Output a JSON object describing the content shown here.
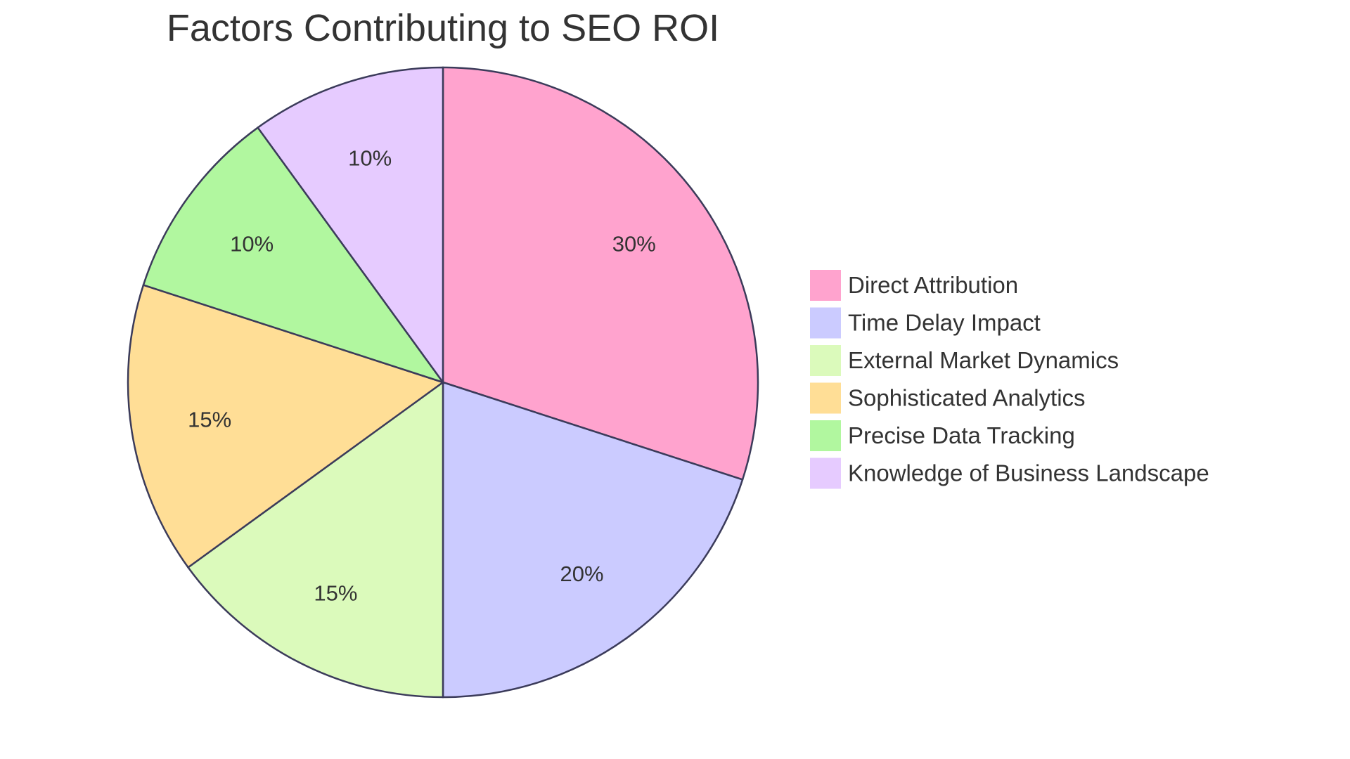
{
  "chart_data": {
    "type": "pie",
    "title": "Factors Contributing to SEO ROI",
    "slices": [
      {
        "label": "Direct Attribution",
        "value": 30,
        "display": "30%",
        "color": "#FFA3CE"
      },
      {
        "label": "Time Delay Impact",
        "value": 20,
        "display": "20%",
        "color": "#CBCBFF"
      },
      {
        "label": "External Market Dynamics",
        "value": 15,
        "display": "15%",
        "color": "#DBFABB"
      },
      {
        "label": "Sophisticated Analytics",
        "value": 15,
        "display": "15%",
        "color": "#FFDE96"
      },
      {
        "label": "Precise Data Tracking",
        "value": 10,
        "display": "10%",
        "color": "#B1F79F"
      },
      {
        "label": "Knowledge of Business Landscape",
        "value": 10,
        "display": "10%",
        "color": "#E6CBFF"
      }
    ],
    "legend_position": "right",
    "stroke_color": "#3b3b5a"
  }
}
